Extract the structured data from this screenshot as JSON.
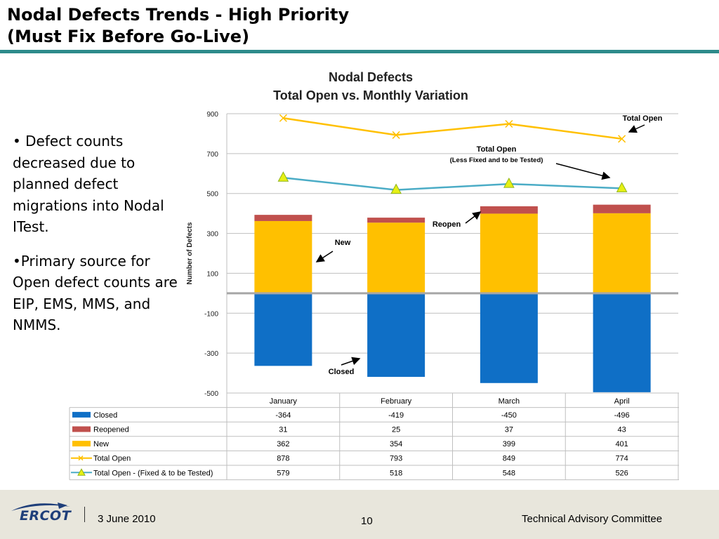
{
  "slide": {
    "title_line1": "Nodal Defects Trends - High Priority",
    "title_line2": "(Must Fix Before Go-Live)",
    "bullets": [
      "• Defect counts decreased due to planned defect migrations into Nodal ITest.",
      "•Primary source for Open defect counts are EIP, EMS, MMS, and NMMS."
    ]
  },
  "footer": {
    "logo_text": "ERCOT",
    "date": "3 June 2010",
    "page_number": "10",
    "committee": "Technical Advisory Committee"
  },
  "chart_data": {
    "type": "bar",
    "title": "Nodal Defects",
    "subtitle": "Total Open vs. Monthly Variation",
    "ylabel": "Number of Defects",
    "ylim": [
      -500,
      900
    ],
    "yticks": [
      "900",
      "700",
      "500",
      "300",
      "100",
      "-100",
      "-300",
      "-500"
    ],
    "categories": [
      "January",
      "February",
      "March",
      "April"
    ],
    "series": [
      {
        "name": "Closed",
        "kind": "bar",
        "color": "#0f6fc6",
        "values": [
          -364,
          -419,
          -450,
          -496
        ]
      },
      {
        "name": "Reopened",
        "kind": "bar",
        "color": "#c0504d",
        "values": [
          31,
          25,
          37,
          43
        ]
      },
      {
        "name": "New",
        "kind": "bar",
        "color": "#ffc000",
        "values": [
          362,
          354,
          399,
          401
        ]
      },
      {
        "name": "Total Open",
        "kind": "line",
        "color": "#ffc000",
        "marker": "x",
        "values": [
          878,
          793,
          849,
          774
        ]
      },
      {
        "name": "Total Open - (Fixed & to be Tested)",
        "kind": "line",
        "color": "#4bacc6",
        "marker": "triangle",
        "values": [
          579,
          518,
          548,
          526
        ]
      }
    ],
    "table_values": [
      [
        "-364",
        "-419",
        "-450",
        "-496"
      ],
      [
        "31",
        "25",
        "37",
        "43"
      ],
      [
        "362",
        "354",
        "399",
        "401"
      ],
      [
        "878",
        "793",
        "849",
        "774"
      ],
      [
        "579",
        "518",
        "548",
        "526"
      ]
    ],
    "annotations": [
      {
        "id": "total-open",
        "lines": [
          "Total Open"
        ]
      },
      {
        "id": "total-open-fixed",
        "lines": [
          "Total Open",
          "(Less Fixed and to be Tested)"
        ]
      },
      {
        "id": "reopen",
        "lines": [
          "Reopen"
        ]
      },
      {
        "id": "new",
        "lines": [
          "New"
        ]
      },
      {
        "id": "closed",
        "lines": [
          "Closed"
        ]
      }
    ],
    "grid": true
  }
}
